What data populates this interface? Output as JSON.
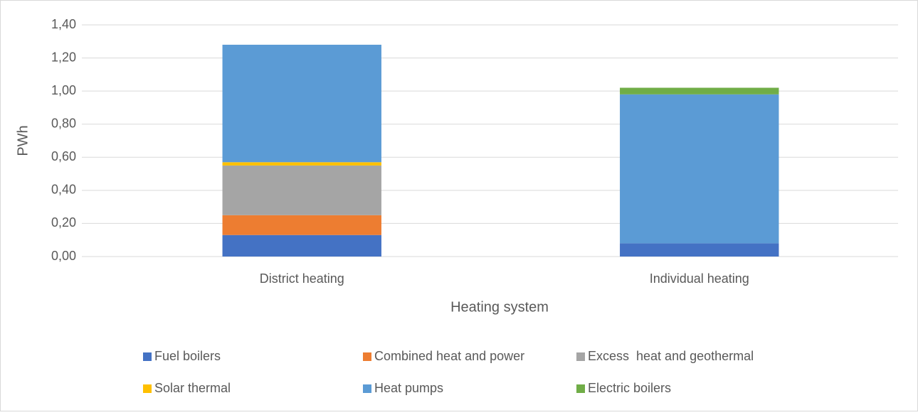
{
  "chart_data": {
    "type": "stacked_bar",
    "y_label": "PWh",
    "x_label": "Heating system",
    "categories": [
      "District heating",
      "Individual heating"
    ],
    "series": [
      {
        "name": "Fuel boilers",
        "color": "#4472c4",
        "values": [
          0.13,
          0.08
        ]
      },
      {
        "name": "Combined heat and power",
        "color": "#ed7d31",
        "values": [
          0.12,
          0
        ]
      },
      {
        "name": "Excess  heat and geothermal",
        "color": "#a5a5a5",
        "values": [
          0.3,
          0
        ]
      },
      {
        "name": "Solar thermal",
        "color": "#ffc000",
        "values": [
          0.02,
          0
        ]
      },
      {
        "name": "Heat pumps",
        "color": "#5b9bd5",
        "values": [
          0.71,
          0.9
        ]
      },
      {
        "name": "Electric boilers",
        "color": "#70ad47",
        "values": [
          0,
          0.04
        ]
      }
    ],
    "ylim": [
      0,
      1.4
    ],
    "yticks": [
      {
        "value": 0,
        "label": "0,00"
      },
      {
        "value": 0.2,
        "label": "0,20"
      },
      {
        "value": 0.4,
        "label": "0,40"
      },
      {
        "value": 0.6,
        "label": "0,60"
      },
      {
        "value": 0.8,
        "label": "0,80"
      },
      {
        "value": 1.0,
        "label": "1,00"
      },
      {
        "value": 1.2,
        "label": "1,20"
      },
      {
        "value": 1.4,
        "label": "1,40"
      }
    ],
    "grid": true,
    "legend": "bottom"
  }
}
